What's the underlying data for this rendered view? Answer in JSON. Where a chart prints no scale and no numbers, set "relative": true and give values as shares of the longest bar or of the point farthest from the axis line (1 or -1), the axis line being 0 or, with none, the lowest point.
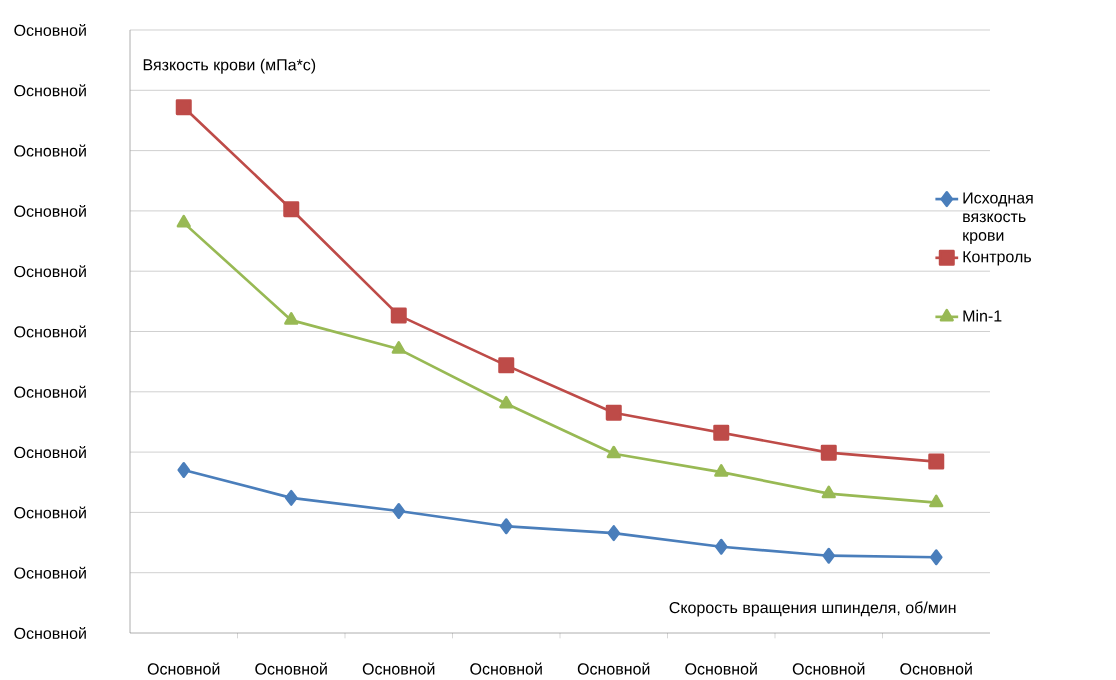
{
  "chart_data": {
    "type": "line",
    "relative": true,
    "xlabel": "Скорость вращения шпинделя, об/мин",
    "ylabel": "Вязкость крови (мПа*с)",
    "categories": [
      "Основной",
      "Основной",
      "Основной",
      "Основной",
      "Основной",
      "Основной",
      "Основной",
      "Основной"
    ],
    "series": [
      {
        "name": "Исходная вязкость крови",
        "color": "#4a7ebb",
        "marker": "diamond",
        "values": [
          0.31,
          0.257,
          0.232,
          0.203,
          0.19,
          0.164,
          0.147,
          0.144
        ]
      },
      {
        "name": "Контроль",
        "color": "#be4b48",
        "marker": "square",
        "values": [
          1,
          0.806,
          0.604,
          0.509,
          0.419,
          0.381,
          0.343,
          0.326
        ]
      },
      {
        "name": "Min-1",
        "color": "#98b954",
        "marker": "triangle",
        "values": [
          0.78,
          0.595,
          0.54,
          0.436,
          0.341,
          0.306,
          0.265,
          0.248
        ]
      }
    ],
    "annotations": [
      "Основной",
      "Основной",
      "Основной",
      "Основной",
      "Основной",
      "Основной",
      "Основной",
      "Основной",
      "Основной",
      "Основной",
      "Основной"
    ],
    "grid": "y",
    "legend": "right",
    "line_style": "solid"
  }
}
